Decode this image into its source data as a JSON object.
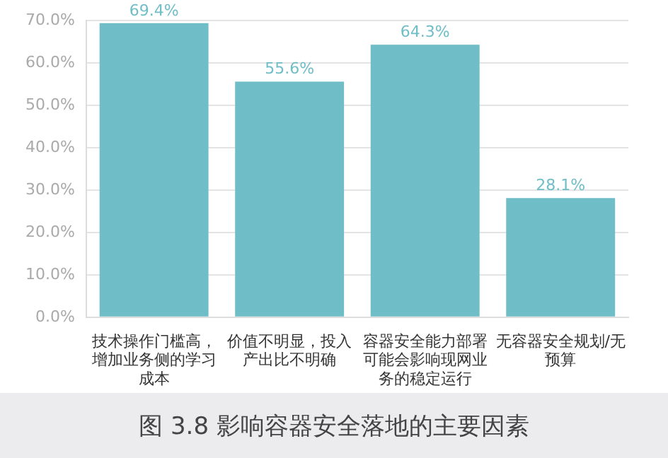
{
  "chart_data": {
    "type": "bar",
    "title": "图 3.8 影响容器安全落地的主要因素",
    "categories": [
      "技术操作门槛高，增加业务侧的学习成本",
      "价值不明显，投入产出比不明确",
      "容器安全能力部署可能会影响现网业务的稳定运行",
      "无容器安全规划/无预算"
    ],
    "values": [
      69.4,
      55.6,
      64.3,
      28.1
    ],
    "value_labels": [
      "69.4%",
      "55.6%",
      "64.3%",
      "28.1%"
    ],
    "color": "#6fbdc6",
    "ylim": [
      0,
      70
    ],
    "yticks": [
      {
        "value": 0,
        "label": "0.0%"
      },
      {
        "value": 10,
        "label": "10.0%"
      },
      {
        "value": 20,
        "label": "20.0%"
      },
      {
        "value": 30,
        "label": "30.0%"
      },
      {
        "value": 40,
        "label": "40.0%"
      },
      {
        "value": 50,
        "label": "50.0%"
      },
      {
        "value": 60,
        "label": "60.0%"
      },
      {
        "value": 70,
        "label": "70.0%"
      }
    ],
    "grid": "y",
    "legend": false
  }
}
